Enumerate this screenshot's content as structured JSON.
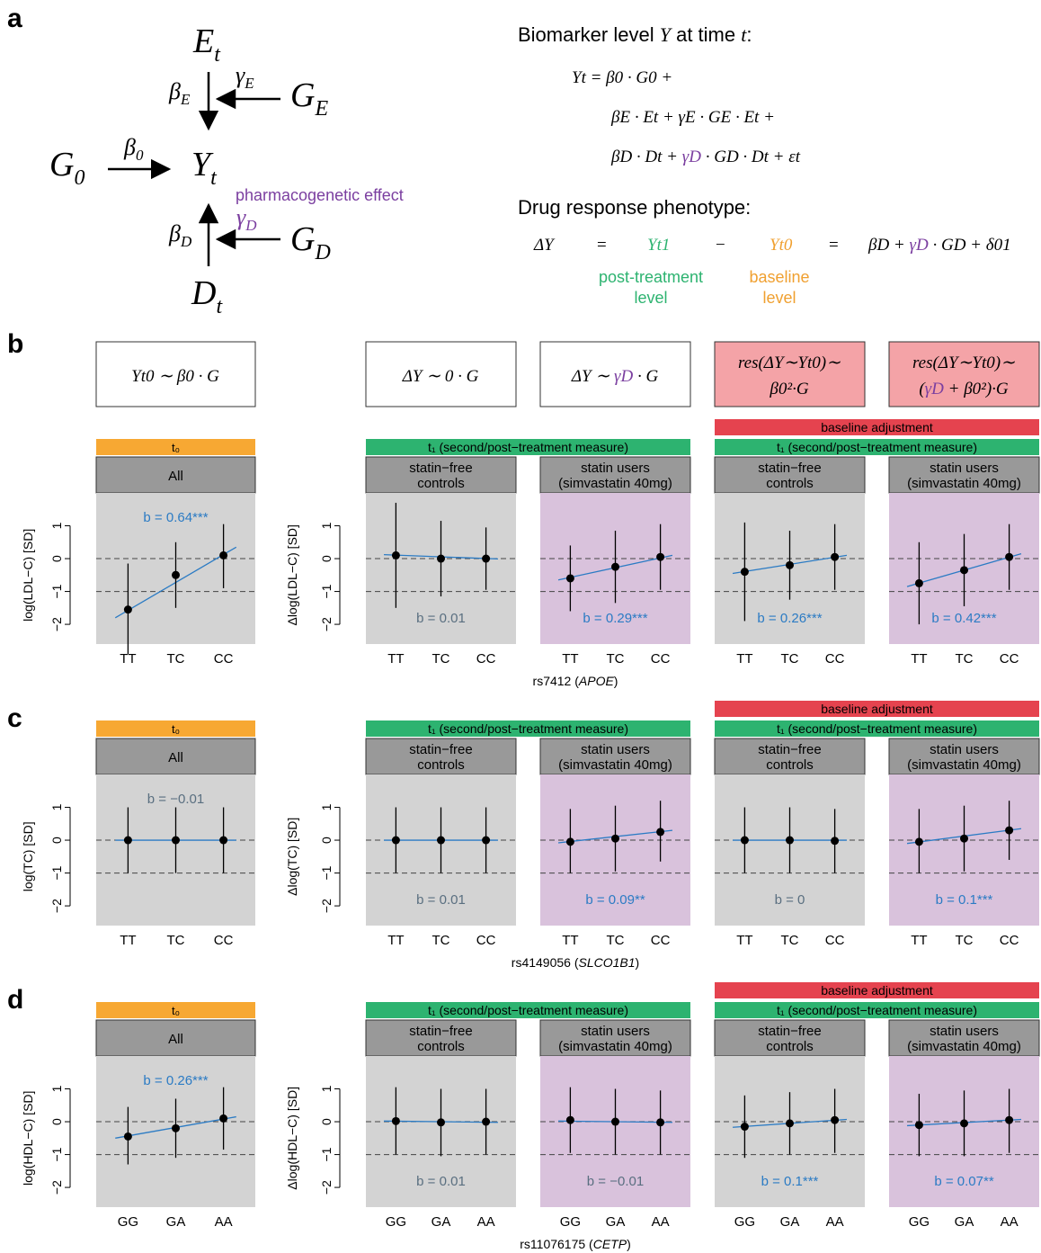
{
  "labels": {
    "a": "a",
    "b": "b",
    "c": "c",
    "d": "d"
  },
  "diagram": {
    "nodes": {
      "E": "E",
      "E_sub": "t",
      "GE": "G",
      "GE_sub": "E",
      "G0": "G",
      "G0_sub": "0",
      "Y": "Y",
      "Y_sub": "t",
      "GD": "G",
      "GD_sub": "D",
      "D": "D",
      "D_sub": "t"
    },
    "edges": {
      "betaE": "β",
      "betaE_sub": "E",
      "gammaE": "γ",
      "gammaE_sub": "E",
      "beta0": "β",
      "beta0_sub": "0",
      "betaD": "β",
      "betaD_sub": "D",
      "gammaD": "γ",
      "gammaD_sub": "D"
    },
    "pgx_label": "pharmacogenetic effect"
  },
  "equations": {
    "title_pre": "Biomarker level ",
    "title_Y": "Y",
    "title_mid": " at time ",
    "title_t": "t",
    "title_post": ":",
    "line1": "Yt = β0 · G0 +",
    "line2": "βE · Et + γE · GE · Et +",
    "line3_a": "βD · Dt + ",
    "line3_b": "γD",
    "line3_c": " · GD · Dt + εt",
    "drug_title": "Drug response phenotype:",
    "dy": "ΔY",
    "eq": "=",
    "yt1": "Yt1",
    "minus": "−",
    "yt0": "Yt0",
    "eq2": "=",
    "rhs_a": "βD + ",
    "rhs_b": "γD",
    "rhs_c": " · GD + δ01",
    "post_label": [
      "post-treatment",
      "level"
    ],
    "base_label": [
      "baseline",
      "level"
    ]
  },
  "model_boxes": [
    {
      "text_a": "Yt0 ∼  β0 · G",
      "text_b": ""
    },
    {
      "text_a": "ΔY ∼  0 · G",
      "text_b": ""
    },
    {
      "text_a": "ΔY ∼ ",
      "text_b": "γD",
      "text_c": " · G"
    },
    {
      "line1": "res(ΔY∼Yt0)∼",
      "line2": "β0²·G"
    },
    {
      "line1": "res(ΔY∼Yt0)∼",
      "line2a": "(",
      "line2b": "γD",
      "line2c": " + β0²)·G"
    }
  ],
  "strips": {
    "t0": "t₀",
    "t1": "t₁ (second/post−treatment measure)",
    "baseline": "baseline adjustment",
    "all": "All",
    "controls": [
      "statin−free",
      "controls"
    ],
    "users": [
      "statin users",
      "(simvastatin 40mg)"
    ]
  },
  "colors": {
    "t0": "#f7a833",
    "t1": "#2db370",
    "baseline": "#e5434f",
    "box_pink": "#f4a3a7",
    "panel_gray": "#d3d3d3",
    "panel_purple": "#d9c2dc",
    "strip_gray": "#999999",
    "fit": "#2b7bc4",
    "ns_text": "#5a6f80",
    "gamma": "#7b3fa0",
    "green": "#2db370",
    "orange": "#f0a030"
  },
  "chart_data": [
    {
      "type": "scatter",
      "row": "b",
      "snp_prefix": "rs7412 (",
      "snp_gene": "APOE",
      "snp_suffix": ")",
      "ylabel_left": "log(LDL−C) [SD]",
      "ylabel_right": "Δlog(LDL−C) [SD]",
      "ylim": [
        -2.6,
        2.0
      ],
      "yticks": [
        "1",
        "0",
        "−1",
        "−2"
      ],
      "ytick_values": [
        1,
        0,
        -1,
        -2
      ],
      "categories": [
        "TT",
        "TC",
        "CC"
      ],
      "panels": [
        {
          "group": "All",
          "points": [
            {
              "y": -1.55,
              "lo": -2.9,
              "hi": -0.15
            },
            {
              "y": -0.5,
              "lo": -1.5,
              "hi": 0.5
            },
            {
              "y": 0.1,
              "lo": -0.9,
              "hi": 1.05
            }
          ],
          "fit": [
            -1.8,
            0.35
          ],
          "b": "b = 0.64***",
          "sig": true,
          "b_pos": "top"
        },
        {
          "group": "controls",
          "points": [
            {
              "y": 0.1,
              "lo": -1.5,
              "hi": 1.7
            },
            {
              "y": 0.0,
              "lo": -1.15,
              "hi": 1.15
            },
            {
              "y": 0.0,
              "lo": -0.95,
              "hi": 0.95
            }
          ],
          "fit": [
            0.12,
            -0.01
          ],
          "b": "b = 0.01",
          "sig": false,
          "b_pos": "bottom"
        },
        {
          "group": "users",
          "points": [
            {
              "y": -0.6,
              "lo": -1.6,
              "hi": 0.4
            },
            {
              "y": -0.25,
              "lo": -1.35,
              "hi": 0.85
            },
            {
              "y": 0.05,
              "lo": -0.95,
              "hi": 1.05
            }
          ],
          "fit": [
            -0.65,
            0.1
          ],
          "b": "b = 0.29***",
          "sig": true,
          "b_pos": "bottom"
        },
        {
          "group": "controls",
          "points": [
            {
              "y": -0.4,
              "lo": -1.9,
              "hi": 1.1
            },
            {
              "y": -0.2,
              "lo": -1.25,
              "hi": 0.85
            },
            {
              "y": 0.05,
              "lo": -0.95,
              "hi": 1.05
            }
          ],
          "fit": [
            -0.45,
            0.1
          ],
          "b": "b = 0.26***",
          "sig": true,
          "b_pos": "bottom"
        },
        {
          "group": "users",
          "points": [
            {
              "y": -0.75,
              "lo": -2.0,
              "hi": 0.5
            },
            {
              "y": -0.35,
              "lo": -1.45,
              "hi": 0.75
            },
            {
              "y": 0.05,
              "lo": -0.95,
              "hi": 1.05
            }
          ],
          "fit": [
            -0.85,
            0.15
          ],
          "b": "b = 0.42***",
          "sig": true,
          "b_pos": "bottom"
        }
      ]
    },
    {
      "type": "scatter",
      "row": "c",
      "snp_prefix": "rs4149056 (",
      "snp_gene": "SLCO1B1",
      "snp_suffix": ")",
      "ylabel_left": "log(TC) [SD]",
      "ylabel_right": "Δlog(TC) [SD]",
      "ylim": [
        -2.6,
        2.0
      ],
      "yticks": [
        "1",
        "0",
        "−1",
        "−2"
      ],
      "ytick_values": [
        1,
        0,
        -1,
        -2
      ],
      "categories": [
        "TT",
        "TC",
        "CC"
      ],
      "panels": [
        {
          "group": "All",
          "points": [
            {
              "y": 0.0,
              "lo": -1.0,
              "hi": 1.0
            },
            {
              "y": 0.0,
              "lo": -1.0,
              "hi": 1.0
            },
            {
              "y": 0.0,
              "lo": -1.0,
              "hi": 1.0
            }
          ],
          "fit": [
            0.0,
            0.0
          ],
          "b": "b = −0.01",
          "sig": false,
          "b_pos": "top"
        },
        {
          "group": "controls",
          "points": [
            {
              "y": 0.0,
              "lo": -1.0,
              "hi": 1.0
            },
            {
              "y": 0.0,
              "lo": -1.0,
              "hi": 1.0
            },
            {
              "y": 0.0,
              "lo": -1.0,
              "hi": 1.0
            }
          ],
          "fit": [
            0.0,
            0.0
          ],
          "b": "b = 0.01",
          "sig": false,
          "b_pos": "bottom"
        },
        {
          "group": "users",
          "points": [
            {
              "y": -0.05,
              "lo": -1.0,
              "hi": 0.95
            },
            {
              "y": 0.05,
              "lo": -0.95,
              "hi": 1.05
            },
            {
              "y": 0.25,
              "lo": -0.65,
              "hi": 1.2
            }
          ],
          "fit": [
            -0.08,
            0.3
          ],
          "b": "b = 0.09**",
          "sig": true,
          "b_pos": "bottom"
        },
        {
          "group": "controls",
          "points": [
            {
              "y": 0.0,
              "lo": -1.0,
              "hi": 1.0
            },
            {
              "y": 0.0,
              "lo": -1.0,
              "hi": 1.0
            },
            {
              "y": -0.02,
              "lo": -1.0,
              "hi": 0.95
            }
          ],
          "fit": [
            0.0,
            0.0
          ],
          "b": "b = 0",
          "sig": false,
          "b_pos": "bottom"
        },
        {
          "group": "users",
          "points": [
            {
              "y": -0.05,
              "lo": -1.0,
              "hi": 0.95
            },
            {
              "y": 0.05,
              "lo": -0.95,
              "hi": 1.05
            },
            {
              "y": 0.3,
              "lo": -0.6,
              "hi": 1.2
            }
          ],
          "fit": [
            -0.1,
            0.35
          ],
          "b": "b = 0.1***",
          "sig": true,
          "b_pos": "bottom"
        }
      ]
    },
    {
      "type": "scatter",
      "row": "d",
      "snp_prefix": "rs11076175 (",
      "snp_gene": "CETP",
      "snp_suffix": ")",
      "ylabel_left": "log(HDL−C) [SD]",
      "ylabel_right": "Δlog(HDL−C) [SD]",
      "ylim": [
        -2.6,
        2.0
      ],
      "yticks": [
        "1",
        "0",
        "−1",
        "−2"
      ],
      "ytick_values": [
        1,
        0,
        -1,
        -2
      ],
      "categories": [
        "GG",
        "GA",
        "AA"
      ],
      "panels": [
        {
          "group": "All",
          "points": [
            {
              "y": -0.45,
              "lo": -1.3,
              "hi": 0.45
            },
            {
              "y": -0.2,
              "lo": -1.1,
              "hi": 0.7
            },
            {
              "y": 0.1,
              "lo": -0.85,
              "hi": 1.05
            }
          ],
          "fit": [
            -0.5,
            0.15
          ],
          "b": "b = 0.26***",
          "sig": true,
          "b_pos": "top"
        },
        {
          "group": "controls",
          "points": [
            {
              "y": 0.02,
              "lo": -1.0,
              "hi": 1.05
            },
            {
              "y": -0.02,
              "lo": -1.05,
              "hi": 1.0
            },
            {
              "y": 0.0,
              "lo": -1.0,
              "hi": 1.0
            }
          ],
          "fit": [
            0.02,
            -0.02
          ],
          "b": "b = 0.01",
          "sig": false,
          "b_pos": "bottom"
        },
        {
          "group": "users",
          "points": [
            {
              "y": 0.05,
              "lo": -0.95,
              "hi": 1.05
            },
            {
              "y": 0.0,
              "lo": -1.0,
              "hi": 1.0
            },
            {
              "y": -0.02,
              "lo": -1.0,
              "hi": 0.95
            }
          ],
          "fit": [
            0.02,
            -0.02
          ],
          "b": "b = −0.01",
          "sig": false,
          "b_pos": "bottom"
        },
        {
          "group": "controls",
          "points": [
            {
              "y": -0.15,
              "lo": -1.1,
              "hi": 0.8
            },
            {
              "y": -0.05,
              "lo": -1.0,
              "hi": 0.9
            },
            {
              "y": 0.05,
              "lo": -0.95,
              "hi": 1.0
            }
          ],
          "fit": [
            -0.17,
            0.07
          ],
          "b": "b = 0.1***",
          "sig": true,
          "b_pos": "bottom"
        },
        {
          "group": "users",
          "points": [
            {
              "y": -0.1,
              "lo": -1.05,
              "hi": 0.85
            },
            {
              "y": -0.05,
              "lo": -1.05,
              "hi": 0.95
            },
            {
              "y": 0.05,
              "lo": -0.95,
              "hi": 1.0
            }
          ],
          "fit": [
            -0.12,
            0.07
          ],
          "b": "b = 0.07**",
          "sig": true,
          "b_pos": "bottom"
        }
      ]
    }
  ]
}
